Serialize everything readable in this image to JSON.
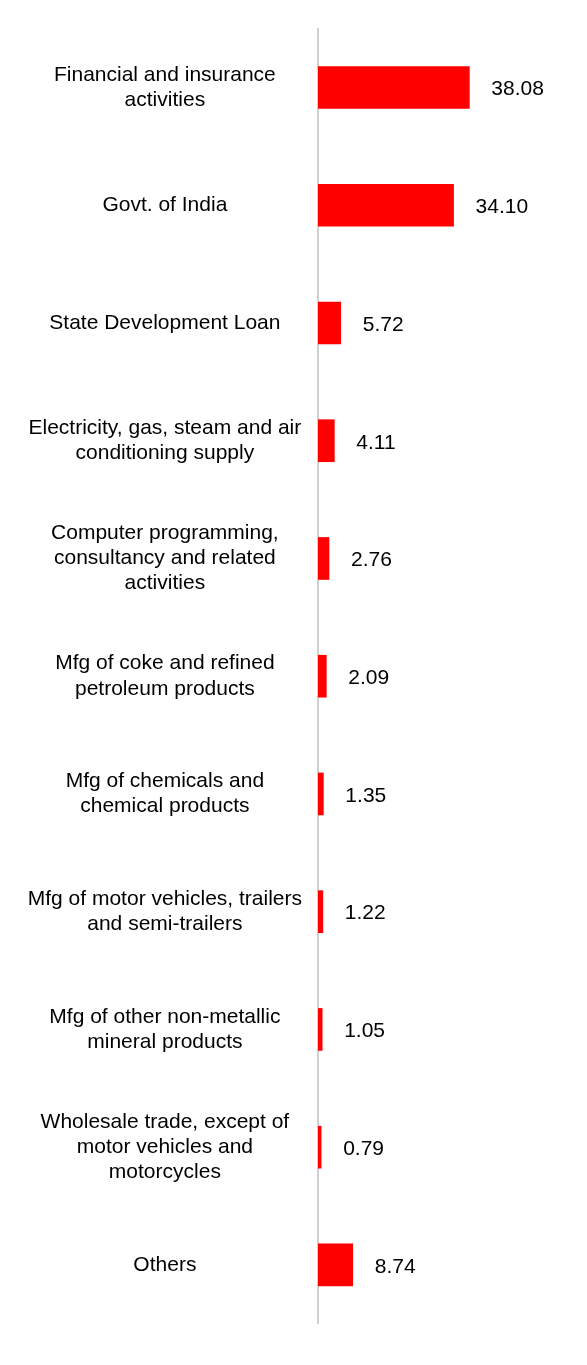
{
  "chart_data": {
    "type": "bar",
    "orientation": "horizontal",
    "categories": [
      "Financial and insurance activities",
      "Govt. of India",
      "State Development Loan",
      "Electricity, gas, steam and air conditioning supply",
      "Computer programming, consultancy and related activities",
      "Mfg of coke and refined petroleum products",
      "Mfg of chemicals and chemical products",
      "Mfg of motor vehicles, trailers and semi-trailers",
      "Mfg of other non-metallic mineral products",
      "Wholesale trade, except of motor vehicles and motorcycles",
      "Others"
    ],
    "values": [
      38.08,
      34.1,
      5.72,
      4.11,
      2.76,
      2.09,
      1.35,
      1.22,
      1.05,
      0.79,
      8.74
    ],
    "value_labels": [
      "38.08",
      "34.10",
      "5.72",
      "4.11",
      "2.76",
      "2.09",
      "1.35",
      "1.22",
      "1.05",
      "0.79",
      "8.74"
    ],
    "color": "#ff0000",
    "legend": false,
    "tick_labels": "y"
  }
}
